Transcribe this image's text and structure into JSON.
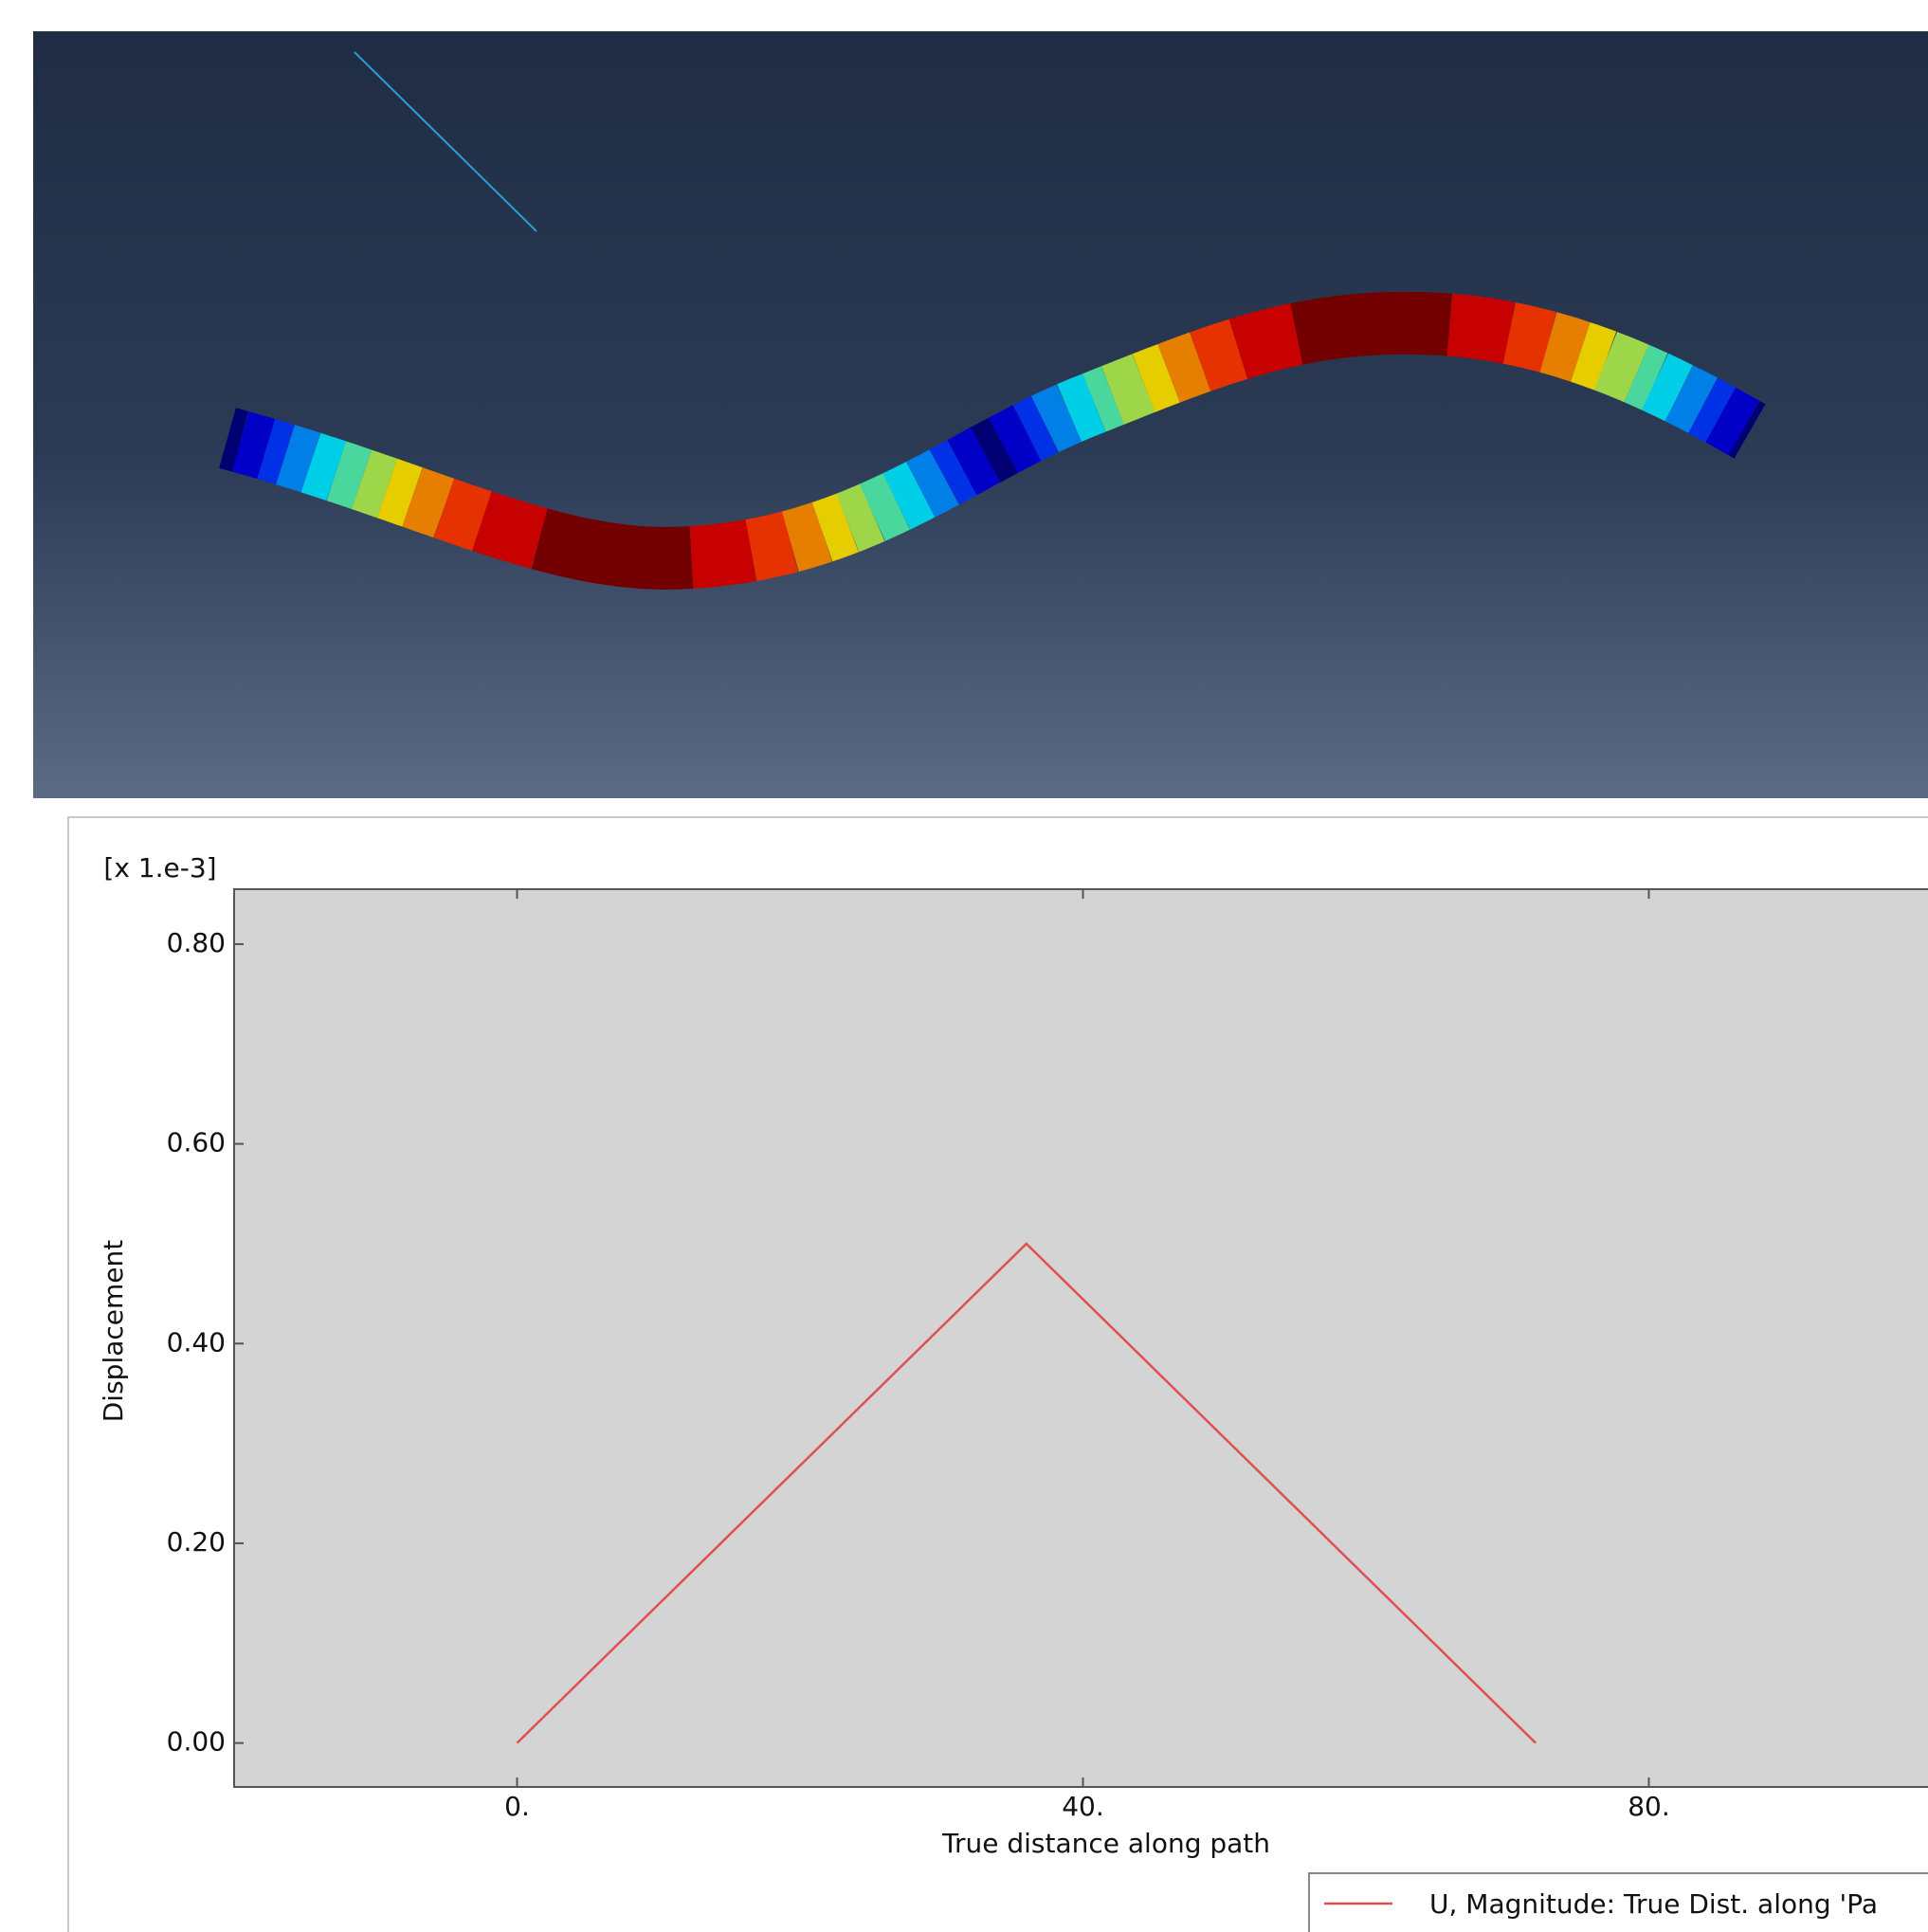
{
  "chart_data": {
    "type": "line",
    "multiplier": "[x 1.e-3]",
    "xlabel": "True distance along path",
    "ylabel": "Displacement",
    "x": [
      0,
      36,
      72
    ],
    "series": [
      {
        "name": "U, Magnitude: True Dist. along 'Pa",
        "color": "#e05050",
        "values": [
          0,
          0.5,
          0
        ]
      }
    ],
    "xlim": [
      -20,
      100
    ],
    "ylim": [
      -0.044,
      0.855
    ],
    "xticks": [
      {
        "value": 0,
        "label": "0."
      },
      {
        "value": 40,
        "label": "40."
      },
      {
        "value": 80,
        "label": "80."
      }
    ],
    "yticks": [
      {
        "value": 0,
        "label": "0.00"
      },
      {
        "value": 0.2,
        "label": "0.20"
      },
      {
        "value": 0.4,
        "label": "0.40"
      },
      {
        "value": 0.6,
        "label": "0.60"
      },
      {
        "value": 0.8,
        "label": "0.80"
      }
    ]
  }
}
